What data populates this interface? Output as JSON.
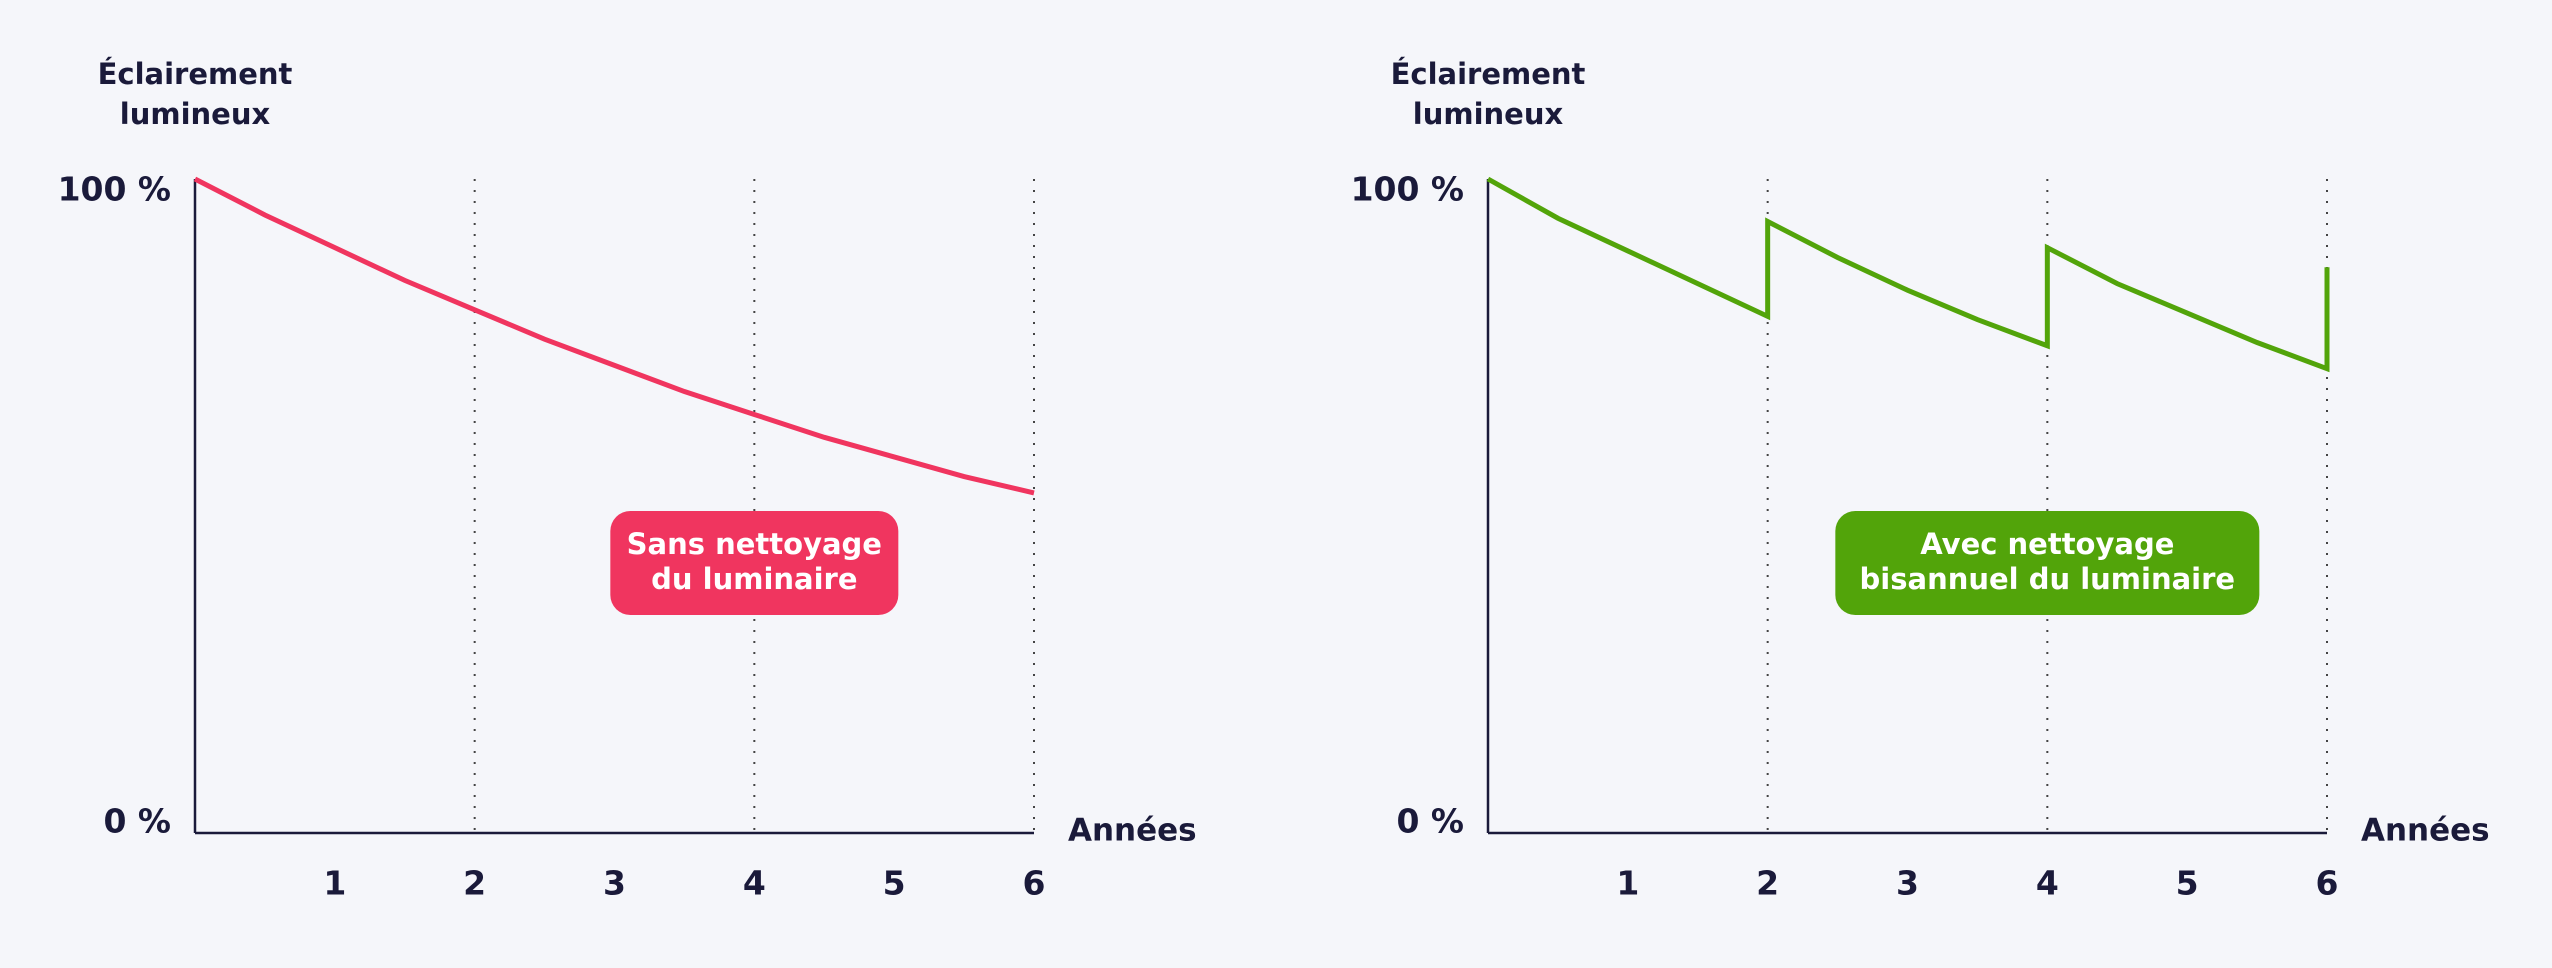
{
  "chart_data": [
    {
      "type": "line",
      "ylabel": [
        "Éclairement",
        "lumineux"
      ],
      "xlabel": "Années",
      "x": [
        0,
        0.5,
        1,
        1.5,
        2,
        2.5,
        3,
        3.5,
        4,
        4.5,
        5,
        5.5,
        6
      ],
      "values": [
        100,
        94.5,
        89.5,
        84.5,
        80,
        75.5,
        71.5,
        67.5,
        64,
        60.5,
        57.5,
        54.5,
        52
      ],
      "color": "#f0355f",
      "xlim": [
        0,
        6
      ],
      "xticks": [
        1,
        2,
        3,
        4,
        5,
        6
      ],
      "x_gridlines": [
        2,
        4,
        6
      ],
      "ylim": [
        0,
        100
      ],
      "yticks": [
        {
          "value": 0,
          "label": "0 %"
        },
        {
          "value": 100,
          "label": "100 %"
        }
      ],
      "annotation": [
        "Sans nettoyage",
        "du luminaire"
      ]
    },
    {
      "type": "line",
      "ylabel": [
        "Éclairement",
        "lumineux"
      ],
      "xlabel": "Années",
      "x": [
        0,
        0.5,
        1,
        1.5,
        2,
        2,
        2.5,
        3,
        3.5,
        4,
        4,
        4.5,
        5,
        5.5,
        6,
        6
      ],
      "values": [
        100,
        94,
        89,
        84,
        79,
        93.5,
        88,
        83,
        78.5,
        74.5,
        89.5,
        84,
        79.5,
        75,
        71,
        86.5
      ],
      "color": "#52a40a",
      "xlim": [
        0,
        6
      ],
      "xticks": [
        1,
        2,
        3,
        4,
        5,
        6
      ],
      "x_gridlines": [
        2,
        4,
        6
      ],
      "ylim": [
        0,
        100
      ],
      "yticks": [
        {
          "value": 0,
          "label": "0 %"
        },
        {
          "value": 100,
          "label": "100 %"
        }
      ],
      "annotation": [
        "Avec nettoyage",
        "bisannuel du luminaire"
      ]
    }
  ]
}
